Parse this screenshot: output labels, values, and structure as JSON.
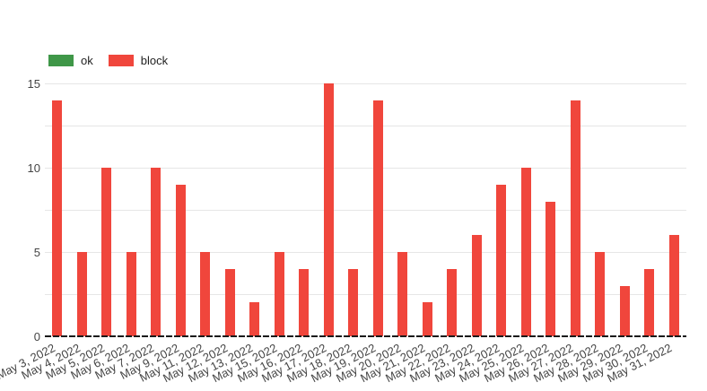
{
  "chart_data": {
    "type": "bar",
    "categories": [
      "May 3, 2022",
      "May 4, 2022",
      "May 5, 2022",
      "May 6, 2022",
      "May 7, 2022",
      "May 9, 2022",
      "May 11, 2022",
      "May 12, 2022",
      "May 13, 2022",
      "May 15, 2022",
      "May 16, 2022",
      "May 17, 2022",
      "May 18, 2022",
      "May 19, 2022",
      "May 20, 2022",
      "May 21, 2022",
      "May 22, 2022",
      "May 23, 2022",
      "May 24, 2022",
      "May 25, 2022",
      "May 26, 2022",
      "May 27, 2022",
      "May 28, 2022",
      "May 29, 2022",
      "May 30, 2022",
      "May 31, 2022"
    ],
    "series": [
      {
        "name": "ok",
        "color": "#3f9748",
        "values": [
          0,
          0,
          0,
          0,
          0,
          0,
          0,
          0,
          0,
          0,
          0,
          0,
          0,
          0,
          0,
          0,
          0,
          0,
          0,
          0,
          0,
          0,
          0,
          0,
          0,
          0
        ]
      },
      {
        "name": "block",
        "color": "#f0463c",
        "values": [
          14,
          5,
          10,
          5,
          10,
          9,
          5,
          4,
          2,
          5,
          4,
          15,
          4,
          14,
          5,
          2,
          4,
          6,
          9,
          10,
          8,
          14,
          5,
          3,
          4,
          6
        ]
      }
    ],
    "xlabel": "",
    "ylabel": "",
    "ylim": [
      0,
      15
    ],
    "yticks": [
      0,
      5,
      10,
      15
    ],
    "gridline_interval": 2.5,
    "grid": true,
    "legend_position": "top-left",
    "x_label_rotation_deg": -27,
    "axis_style": {
      "gridline_color": "#e6e6e6",
      "baseline_color": "#1a1a1a",
      "baseline_style": "dashed",
      "tick_text_color": "#444444"
    }
  }
}
